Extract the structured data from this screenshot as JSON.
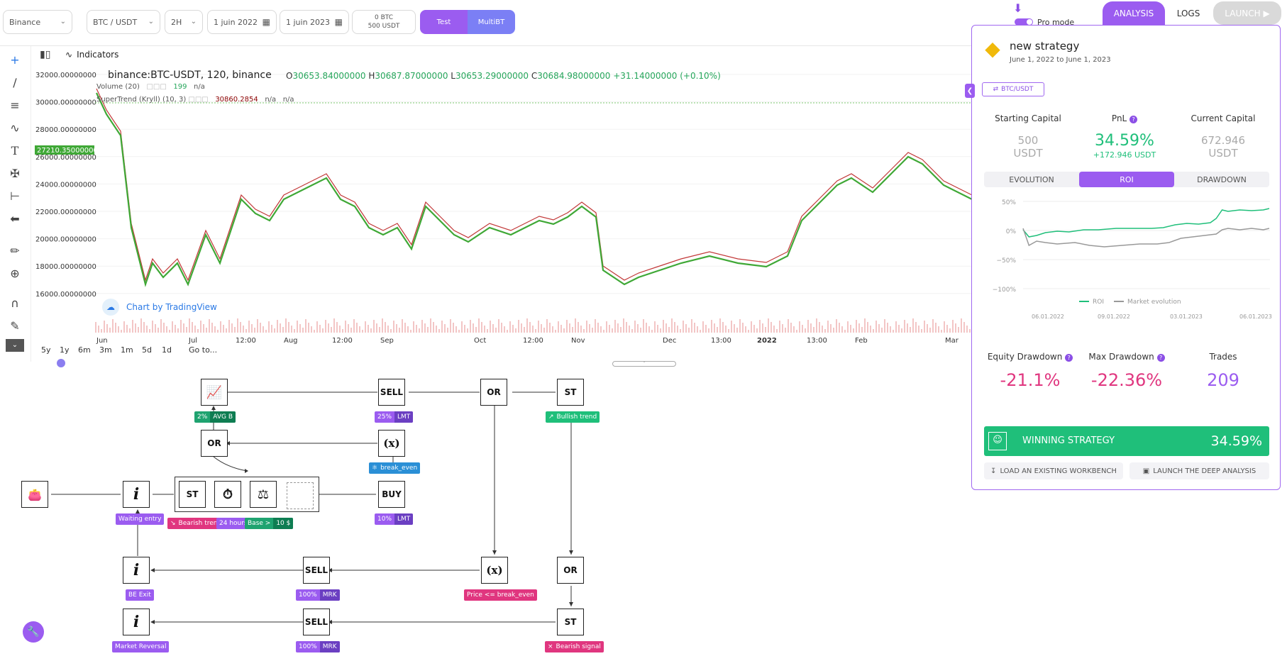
{
  "topbar": {
    "exchange": "Binance",
    "pair": "BTC / USDT",
    "timeframe": "2H",
    "date_start": "1 juin 2022",
    "date_end": "1 juin 2023",
    "balance_btc": "0 BTC",
    "balance_usdt": "500 USDT",
    "test_label": "Test",
    "multibt_label": "MultiBT",
    "pro_mode_label": "Pro mode",
    "tab_analysis": "ANALYSIS",
    "tab_logs": "LOGS",
    "tab_launch": "LAUNCH"
  },
  "chart": {
    "indicators_label": "Indicators",
    "symbol": "binance:BTC-USDT, 120, binance",
    "ohlc": {
      "o_label": "O",
      "o": "30653.84000000",
      "h_label": "H",
      "h": "30687.87000000",
      "l_label": "L",
      "l": "30653.29000000",
      "c_label": "C",
      "c": "30684.98000000",
      "chg": "+31.14000000 (+0.10%)"
    },
    "volume_label": "Volume (20)",
    "volume_val": "199",
    "volume_na": "n/a",
    "st_label": "SuperTrend (Kryll) (10, 3)",
    "st_val": "30860.2854",
    "st_na1": "n/a",
    "st_na2": "n/a",
    "price_labels": [
      "32000.00000000",
      "30000.00000000",
      "28000.00000000",
      "26000.00000000",
      "24000.00000000",
      "22000.00000000",
      "20000.00000000",
      "18000.00000000",
      "16000.00000000"
    ],
    "current_price": "27210.35000000",
    "time_labels": [
      "Jun",
      "Jul",
      "12:00",
      "Aug",
      "12:00",
      "Sep",
      "Oct",
      "12:00",
      "Nov",
      "Dec",
      "13:00",
      "2022",
      "13:00",
      "Feb",
      "Mar"
    ],
    "watermark": "Chart by TradingView",
    "ranges": [
      "5y",
      "1y",
      "6m",
      "3m",
      "1m",
      "5d",
      "1d"
    ],
    "goto": "Go to..."
  },
  "workflow": {
    "nodes": {
      "sell1": "SELL",
      "or1": "OR",
      "st1": "ST",
      "or2": "OR",
      "st_main": "ST",
      "buy": "BUY",
      "sell2": "SELL",
      "or3": "OR",
      "sell3": "SELL",
      "st3": "ST"
    },
    "labels": {
      "avgb_a": "2%",
      "avgb_b": "AVG B",
      "lmt1_a": "25%",
      "lmt1_b": "LMT",
      "bullish": "Bullish trend",
      "break_even": "break_even",
      "waiting": "Waiting entry",
      "bearish": "Bearish trend",
      "hours": "24 hours",
      "base_a": "Base >",
      "base_b": "10 $",
      "lmt2_a": "10%",
      "lmt2_b": "LMT",
      "be_exit": "BE Exit",
      "mrk1_a": "100%",
      "mrk1_b": "MRK",
      "price_be": "Price <= break_even",
      "market_rev": "Market Reversal",
      "mrk2_a": "100%",
      "mrk2_b": "MRK",
      "bear_signal": "Bearish signal"
    }
  },
  "panel": {
    "strategy_name": "new strategy",
    "period": "June 1, 2022 to June 1, 2023",
    "pair_tag": "BTC/USDT",
    "starting_capital_label": "Starting Capital",
    "starting_capital_value": "500",
    "starting_capital_unit": "USDT",
    "pnl_label": "PnL",
    "pnl_value": "34.59%",
    "pnl_abs": "+172.946 USDT",
    "current_capital_label": "Current Capital",
    "current_capital_value": "672.946",
    "current_capital_unit": "USDT",
    "tabs": [
      "EVOLUTION",
      "ROI",
      "DRAWDOWN"
    ],
    "roi_axis": [
      "50%",
      "0%",
      "−50%",
      "−100%"
    ],
    "roi_dates": [
      "06.01.2022",
      "09.01.2022",
      "03.01.2023",
      "06.01.2023"
    ],
    "legend_roi": "ROI",
    "legend_market": "Market evolution",
    "equity_dd_label": "Equity Drawdown",
    "equity_dd_value": "-21.1%",
    "max_dd_label": "Max Drawdown",
    "max_dd_value": "-22.36%",
    "trades_label": "Trades",
    "trades_value": "209",
    "winning_label": "WINNING STRATEGY",
    "winning_value": "34.59%",
    "load_btn": "LOAD AN EXISTING WORKBENCH",
    "launch_btn": "LAUNCH THE DEEP ANALYSIS"
  },
  "colors": {
    "purple": "#9b5cf0",
    "blue_purple": "#7b7ff5",
    "green": "#1fbf7a",
    "pink": "#e0367f",
    "red": "#e84c5c",
    "dark_purple": "#6b3fc2"
  }
}
